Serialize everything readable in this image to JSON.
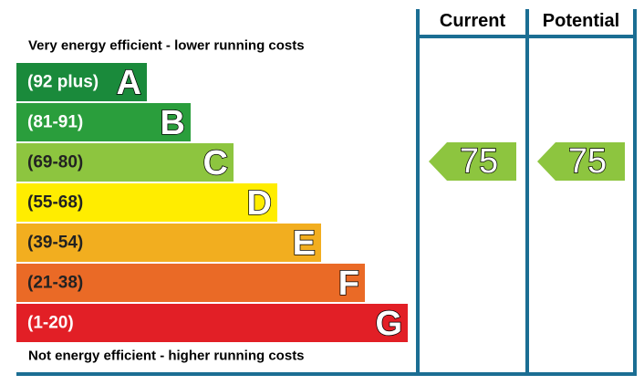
{
  "header": {
    "current": "Current",
    "potential": "Potential"
  },
  "top_note": "Very energy efficient - lower running costs",
  "bottom_note": "Not energy efficient - higher running costs",
  "bands": [
    {
      "range": "(92 plus)",
      "letter": "A"
    },
    {
      "range": "(81-91)",
      "letter": "B"
    },
    {
      "range": "(69-80)",
      "letter": "C"
    },
    {
      "range": "(55-68)",
      "letter": "D"
    },
    {
      "range": "(39-54)",
      "letter": "E"
    },
    {
      "range": "(21-38)",
      "letter": "F"
    },
    {
      "range": "(1-20)",
      "letter": "G"
    }
  ],
  "current": 75,
  "potential": 75
}
